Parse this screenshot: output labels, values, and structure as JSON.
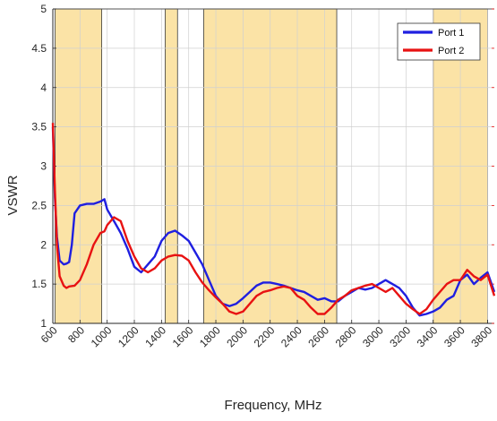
{
  "chart_data": {
    "type": "line",
    "xlabel": "Frequency, MHz",
    "ylabel": "VSWR",
    "xlim": [
      600,
      3850
    ],
    "ylim": [
      1,
      5
    ],
    "x_ticks": [
      600,
      800,
      1000,
      1200,
      1400,
      1600,
      1800,
      2000,
      2200,
      2400,
      2600,
      2800,
      3000,
      3200,
      3400,
      3600,
      3800
    ],
    "y_ticks": [
      1,
      1.5,
      2,
      2.5,
      3,
      3.5,
      4,
      4.5,
      5
    ],
    "y_tick_labels": [
      "1",
      "1.5",
      "2",
      "2.5",
      "3",
      "3.5",
      "4",
      "4.5",
      "5"
    ],
    "grid": true,
    "legend_position": "top-right",
    "highlight_bands": [
      [
        617,
        960
      ],
      [
        1427,
        1518
      ],
      [
        1710,
        2690
      ],
      [
        3400,
        3800
      ]
    ],
    "highlight_color": "#fbe3a6",
    "series": [
      {
        "name": "Port 1",
        "color": "#1f1fe0",
        "x": [
          600,
          615,
          630,
          650,
          680,
          700,
          720,
          740,
          760,
          800,
          850,
          900,
          950,
          980,
          1000,
          1050,
          1100,
          1150,
          1200,
          1250,
          1300,
          1350,
          1400,
          1450,
          1500,
          1550,
          1600,
          1650,
          1700,
          1750,
          1800,
          1850,
          1900,
          1950,
          2000,
          2050,
          2100,
          2150,
          2200,
          2250,
          2300,
          2350,
          2400,
          2450,
          2500,
          2550,
          2600,
          2650,
          2700,
          2750,
          2800,
          2850,
          2900,
          2950,
          3000,
          3050,
          3100,
          3150,
          3200,
          3250,
          3300,
          3350,
          3400,
          3450,
          3500,
          3550,
          3600,
          3650,
          3700,
          3750,
          3800,
          3850
        ],
        "y": [
          3.5,
          2.6,
          2.1,
          1.8,
          1.75,
          1.76,
          1.78,
          2.0,
          2.4,
          2.5,
          2.52,
          2.52,
          2.55,
          2.58,
          2.45,
          2.3,
          2.15,
          1.95,
          1.72,
          1.65,
          1.75,
          1.85,
          2.05,
          2.15,
          2.18,
          2.12,
          2.05,
          1.9,
          1.75,
          1.55,
          1.35,
          1.25,
          1.22,
          1.25,
          1.32,
          1.4,
          1.48,
          1.52,
          1.52,
          1.5,
          1.48,
          1.45,
          1.42,
          1.4,
          1.35,
          1.3,
          1.32,
          1.28,
          1.28,
          1.35,
          1.4,
          1.45,
          1.43,
          1.45,
          1.5,
          1.55,
          1.5,
          1.45,
          1.35,
          1.2,
          1.1,
          1.12,
          1.15,
          1.2,
          1.3,
          1.35,
          1.55,
          1.62,
          1.5,
          1.58,
          1.65,
          1.4
        ]
      },
      {
        "name": "Port 2",
        "color": "#e81212",
        "x": [
          600,
          615,
          630,
          650,
          680,
          700,
          720,
          760,
          800,
          850,
          900,
          950,
          980,
          1000,
          1050,
          1100,
          1150,
          1200,
          1250,
          1300,
          1350,
          1400,
          1450,
          1500,
          1550,
          1600,
          1650,
          1700,
          1750,
          1800,
          1850,
          1900,
          1950,
          2000,
          2050,
          2100,
          2150,
          2200,
          2250,
          2300,
          2350,
          2400,
          2450,
          2500,
          2550,
          2600,
          2650,
          2700,
          2750,
          2800,
          2850,
          2900,
          2950,
          3000,
          3050,
          3100,
          3150,
          3200,
          3250,
          3300,
          3350,
          3400,
          3450,
          3500,
          3550,
          3600,
          3650,
          3700,
          3750,
          3800,
          3850
        ],
        "y": [
          3.55,
          2.7,
          2.0,
          1.6,
          1.48,
          1.45,
          1.47,
          1.48,
          1.55,
          1.75,
          2.0,
          2.15,
          2.17,
          2.25,
          2.35,
          2.3,
          2.05,
          1.85,
          1.7,
          1.65,
          1.7,
          1.8,
          1.85,
          1.87,
          1.86,
          1.8,
          1.65,
          1.52,
          1.42,
          1.33,
          1.25,
          1.15,
          1.12,
          1.15,
          1.25,
          1.35,
          1.4,
          1.42,
          1.45,
          1.47,
          1.45,
          1.35,
          1.3,
          1.2,
          1.12,
          1.12,
          1.2,
          1.3,
          1.35,
          1.42,
          1.45,
          1.48,
          1.5,
          1.45,
          1.4,
          1.45,
          1.35,
          1.25,
          1.18,
          1.12,
          1.18,
          1.3,
          1.4,
          1.5,
          1.55,
          1.55,
          1.68,
          1.6,
          1.55,
          1.62,
          1.35
        ]
      }
    ]
  }
}
